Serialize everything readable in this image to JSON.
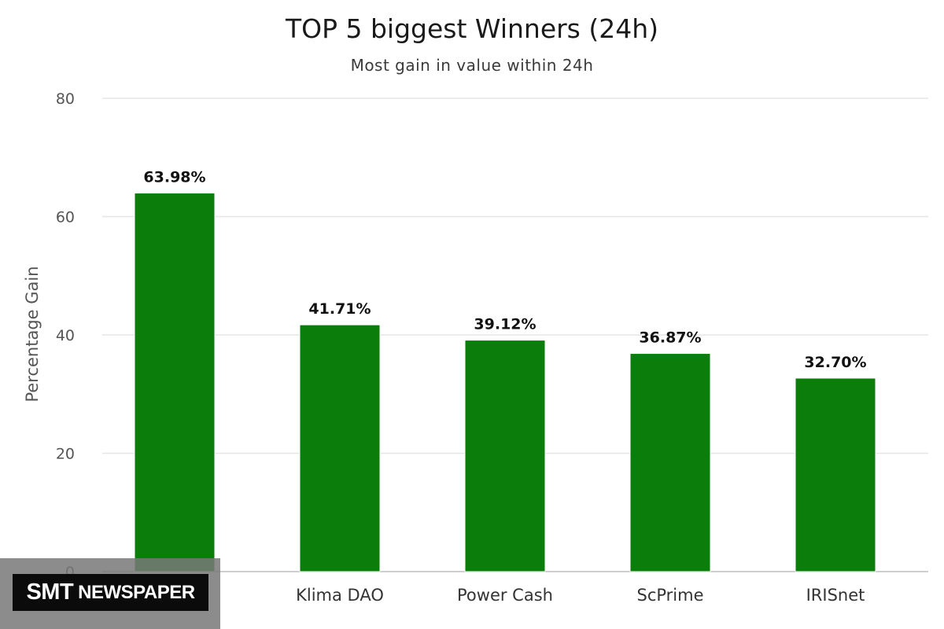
{
  "chart_data": {
    "type": "bar",
    "title": "TOP 5 biggest Winners (24h)",
    "subtitle": "Most gain in value within 24h",
    "xlabel": "",
    "ylabel": "Percentage Gain",
    "categories": [
      "",
      "Klima DAO",
      "Power Cash",
      "ScPrime",
      "IRISnet"
    ],
    "values": [
      63.98,
      41.71,
      39.12,
      36.87,
      32.7
    ],
    "data_labels": [
      "63.98%",
      "41.71%",
      "39.12%",
      "36.87%",
      "32.70%"
    ],
    "ylim": [
      0,
      80
    ],
    "yticks": [
      0,
      20,
      40,
      60,
      80
    ],
    "bar_color": "#0a7d0a",
    "grid": true,
    "legend": "none"
  },
  "watermark": {
    "part1": "SMT",
    "part2": "NEWSPAPER"
  }
}
